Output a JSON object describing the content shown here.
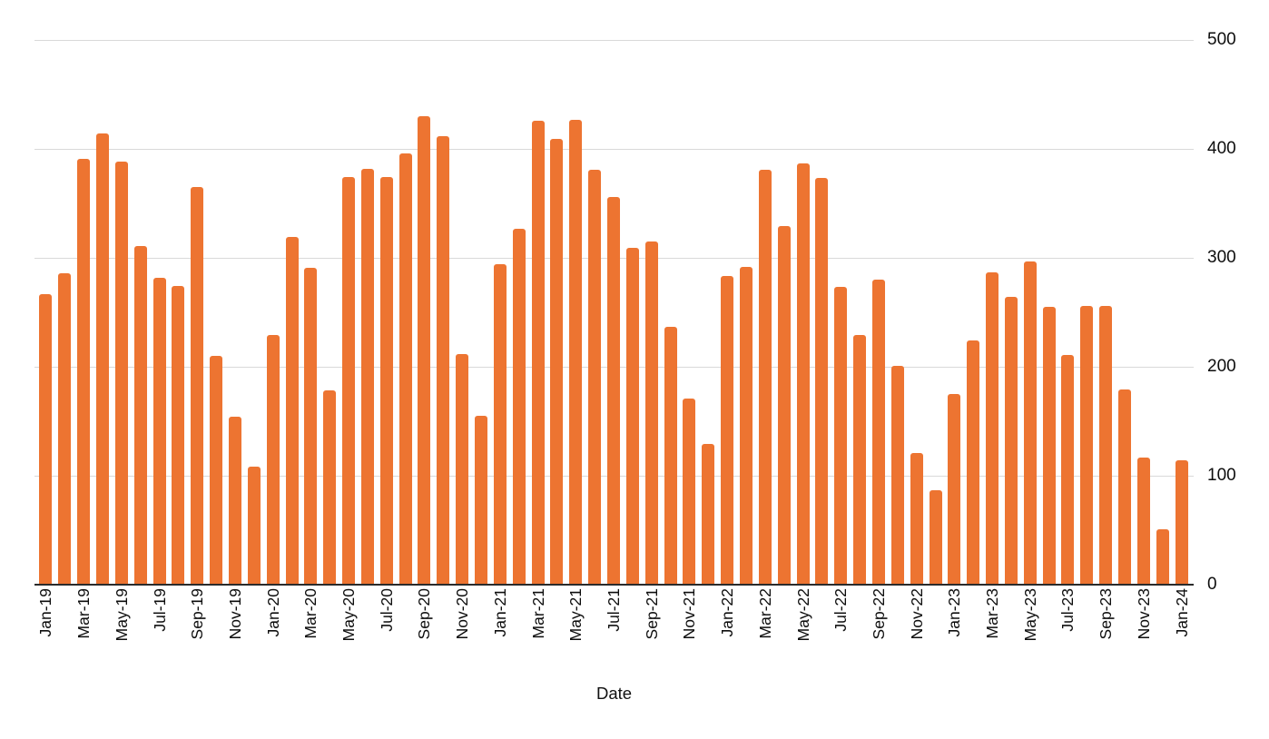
{
  "chart_data": {
    "type": "bar",
    "title": "",
    "xlabel": "Date",
    "ylabel": "",
    "legend_position": "none",
    "grid": "horizontal",
    "y_axis_side": "right",
    "x_label_rotation": -90,
    "bar_color": "#ED7431",
    "gridline_color": "#D9D9D9",
    "axis_line_color": "#2B2B2B",
    "ylim": [
      0,
      500
    ],
    "yticks": [
      0,
      100,
      200,
      300,
      400,
      500
    ],
    "ytick_labels": [
      "0",
      "100",
      "200",
      "300",
      "400",
      "500"
    ],
    "xtick_labels_shown": [
      "Jan-19",
      "Mar-19",
      "May-19",
      "Jul-19",
      "Sep-19",
      "Nov-19",
      "Jan-20",
      "Mar-20",
      "May-20",
      "Jul-20",
      "Sep-20",
      "Nov-20",
      "Jan-21",
      "Mar-21",
      "May-21",
      "Jul-21",
      "Sep-21",
      "Nov-21",
      "Jan-22",
      "Mar-22",
      "May-22",
      "Jul-22",
      "Sep-22",
      "Nov-22",
      "Jan-23",
      "Mar-23",
      "May-23",
      "Jul-23",
      "Sep-23",
      "Nov-23",
      "Jan-24"
    ],
    "xtick_every": 2,
    "categories": [
      "Jan-19",
      "Feb-19",
      "Mar-19",
      "Apr-19",
      "May-19",
      "Jun-19",
      "Jul-19",
      "Aug-19",
      "Sep-19",
      "Oct-19",
      "Nov-19",
      "Dec-19",
      "Jan-20",
      "Feb-20",
      "Mar-20",
      "Apr-20",
      "May-20",
      "Jun-20",
      "Jul-20",
      "Aug-20",
      "Sep-20",
      "Oct-20",
      "Nov-20",
      "Dec-20",
      "Jan-21",
      "Feb-21",
      "Mar-21",
      "Apr-21",
      "May-21",
      "Jun-21",
      "Jul-21",
      "Aug-21",
      "Sep-21",
      "Oct-21",
      "Nov-21",
      "Dec-21",
      "Jan-22",
      "Feb-22",
      "Mar-22",
      "Apr-22",
      "May-22",
      "Jun-22",
      "Jul-22",
      "Aug-22",
      "Sep-22",
      "Oct-22",
      "Nov-22",
      "Dec-22",
      "Jan-23",
      "Feb-23",
      "Mar-23",
      "Apr-23",
      "May-23",
      "Jun-23",
      "Jul-23",
      "Aug-23",
      "Sep-23",
      "Oct-23",
      "Nov-23",
      "Dec-23",
      "Jan-24"
    ],
    "values": [
      267,
      286,
      391,
      414,
      388,
      311,
      282,
      274,
      365,
      210,
      154,
      108,
      229,
      319,
      291,
      178,
      374,
      382,
      374,
      396,
      430,
      412,
      212,
      155,
      294,
      327,
      426,
      409,
      427,
      381,
      356,
      309,
      315,
      237,
      171,
      129,
      283,
      292,
      381,
      329,
      387,
      373,
      273,
      229,
      280,
      201,
      121,
      87,
      175,
      224,
      287,
      264,
      297,
      255,
      211,
      256,
      256,
      179,
      117,
      51,
      114
    ]
  }
}
